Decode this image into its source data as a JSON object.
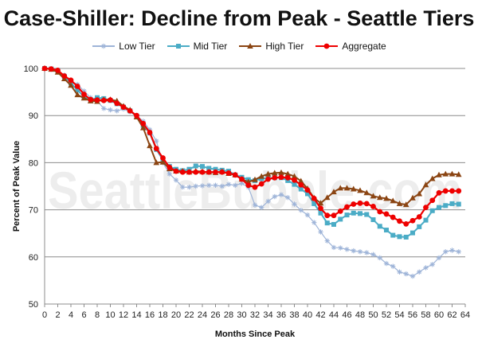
{
  "chart_data": {
    "type": "line",
    "title": "Case-Shiller: Decline from Peak - Seattle Tiers",
    "xlabel": "Months Since Peak",
    "ylabel": "Percent of Peak Value",
    "watermark": "SeattleBubble.com",
    "xlim": [
      0,
      64
    ],
    "ylim": [
      50,
      100
    ],
    "x_ticks": [
      "0",
      "2",
      "4",
      "6",
      "8",
      "10",
      "12",
      "14",
      "16",
      "18",
      "20",
      "22",
      "24",
      "26",
      "28",
      "30",
      "32",
      "34",
      "36",
      "38",
      "40",
      "42",
      "44",
      "46",
      "48",
      "50",
      "52",
      "54",
      "56",
      "58",
      "60",
      "62",
      "64"
    ],
    "y_ticks": [
      "50",
      "60",
      "70",
      "80",
      "90",
      "100"
    ],
    "grid": "horizontal",
    "legend_position": "top",
    "series": [
      {
        "name": "Low Tier",
        "color": "#9eb4d8",
        "marker": "star",
        "values": [
          100,
          99.8,
          99.5,
          98.6,
          97.3,
          96.6,
          95.2,
          93.8,
          93.1,
          91.5,
          91.2,
          91.0,
          91.4,
          90.8,
          90.0,
          88.8,
          87.0,
          84.6,
          80.0,
          77.6,
          76.3,
          74.8,
          74.8,
          75.0,
          75.1,
          75.2,
          75.2,
          75.0,
          75.4,
          75.2,
          75.6,
          74.8,
          71.0,
          70.5,
          71.8,
          72.8,
          73.2,
          72.6,
          71.2,
          69.9,
          68.9,
          67.3,
          65.3,
          63.4,
          62.0,
          61.9,
          61.6,
          61.3,
          61.1,
          60.9,
          60.5,
          59.8,
          58.6,
          58.0,
          56.8,
          56.4,
          55.9,
          56.8,
          57.7,
          58.4,
          59.8,
          61.1,
          61.4,
          61.1
        ]
      },
      {
        "name": "Mid Tier",
        "color": "#4bacc6",
        "marker": "square",
        "values": [
          100,
          99.9,
          99.6,
          98.3,
          96.9,
          95.4,
          94.0,
          93.3,
          93.8,
          93.6,
          93.2,
          92.5,
          91.8,
          91.0,
          89.9,
          87.9,
          86.3,
          82.8,
          80.6,
          79.2,
          78.6,
          78.3,
          78.6,
          79.3,
          79.2,
          78.8,
          78.6,
          78.4,
          78.2,
          77.4,
          76.9,
          76.4,
          76.2,
          76.6,
          76.7,
          76.8,
          76.8,
          76.2,
          75.4,
          74.4,
          73.4,
          71.3,
          69.3,
          67.2,
          66.9,
          68.0,
          68.9,
          69.3,
          69.2,
          69.0,
          67.9,
          66.5,
          65.7,
          64.6,
          64.3,
          64.2,
          65.1,
          66.4,
          67.8,
          69.8,
          70.5,
          70.9,
          71.3,
          71.2
        ]
      },
      {
        "name": "High Tier",
        "color": "#8b4513",
        "marker": "triangle",
        "values": [
          100,
          99.8,
          99.2,
          97.8,
          96.4,
          94.4,
          93.7,
          93.1,
          93.0,
          93.4,
          93.4,
          93.1,
          92.0,
          91.2,
          89.7,
          87.4,
          83.6,
          80.0,
          80.1,
          78.7,
          78.2,
          78.2,
          78.0,
          78.2,
          78.1,
          78.0,
          77.9,
          78.1,
          77.7,
          77.4,
          76.5,
          75.9,
          76.4,
          77.1,
          77.6,
          77.8,
          77.9,
          77.6,
          77.1,
          76.1,
          74.5,
          72.5,
          71.4,
          72.6,
          73.8,
          74.6,
          74.6,
          74.4,
          74.1,
          73.6,
          72.9,
          72.6,
          72.4,
          71.9,
          71.3,
          71.1,
          72.5,
          73.4,
          75.3,
          76.6,
          77.4,
          77.6,
          77.6,
          77.5
        ]
      },
      {
        "name": "Aggregate",
        "color": "#ee0000",
        "marker": "circle",
        "values": [
          100,
          99.9,
          99.6,
          98.4,
          97.5,
          96.2,
          94.5,
          93.4,
          93.3,
          93.2,
          93.3,
          92.6,
          91.8,
          91.0,
          90.0,
          88.3,
          86.4,
          83.0,
          81.0,
          79.0,
          78.2,
          78.0,
          78.0,
          78.0,
          78.0,
          78.0,
          78.0,
          78.0,
          77.8,
          77.4,
          76.5,
          75.2,
          74.8,
          75.5,
          76.5,
          76.8,
          76.9,
          76.8,
          76.3,
          75.3,
          74.2,
          72.4,
          70.3,
          68.8,
          68.8,
          69.7,
          70.6,
          71.2,
          71.4,
          71.3,
          70.7,
          69.6,
          69.1,
          68.4,
          67.6,
          67.0,
          67.7,
          68.5,
          70.5,
          72.0,
          73.6,
          74.0,
          74.0,
          74.0
        ]
      }
    ]
  }
}
